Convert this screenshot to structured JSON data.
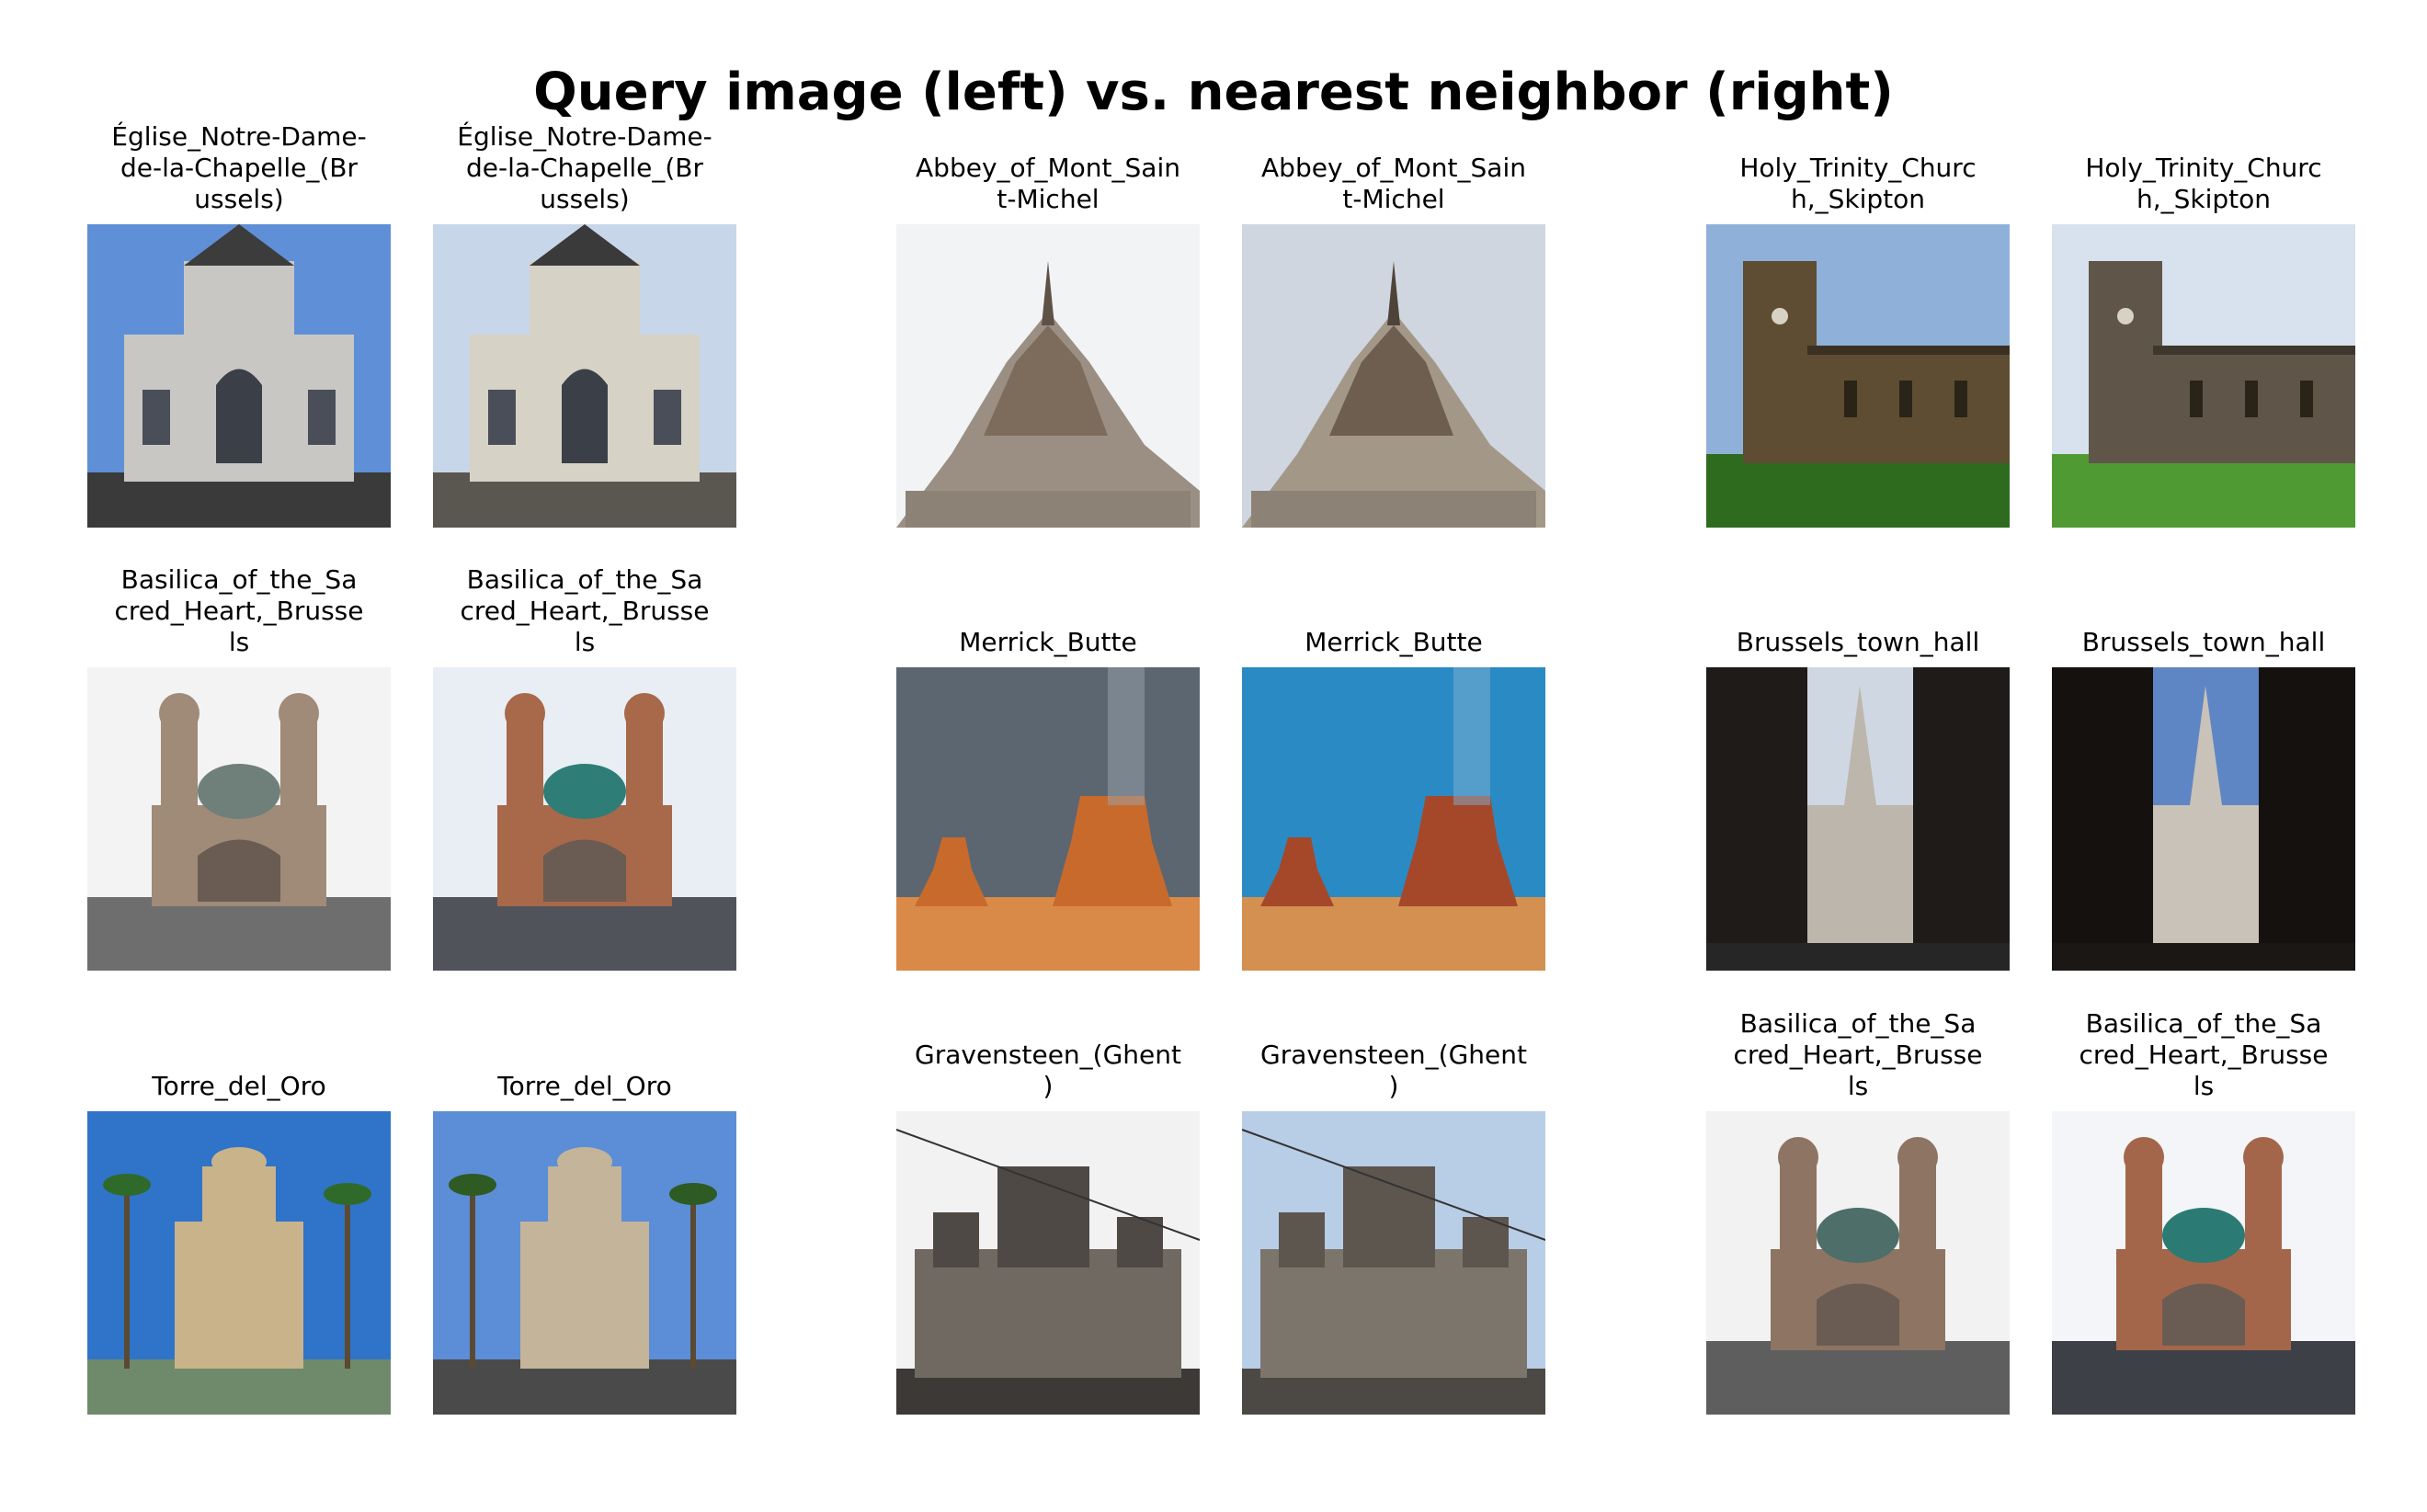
{
  "title": "Query image (left) vs. nearest neighbor (right)",
  "pairs": [
    {
      "query": {
        "label": "Église_Notre-Dame-\nde-la-Chapelle_(Br\nussels)",
        "icon": "gothic-church-photo",
        "sky": "#5f8fd6",
        "main": "#c9c7c4",
        "ground": "#3a3a3a",
        "roof": "#3c3c3c"
      },
      "neighbor": {
        "label": "Église_Notre-Dame-\nde-la-Chapelle_(Br\nussels)",
        "icon": "gothic-church-photo",
        "sky": "#c8d6ea",
        "main": "#d6d2c6",
        "ground": "#5a5750",
        "roof": "#3a3a3a"
      }
    },
    {
      "query": {
        "label": "Abbey_of_Mont_Sain\nt-Michel",
        "icon": "mont-saint-michel-photo",
        "sky": "#f1f3f5",
        "main": "#7d6c5b",
        "ground": "#9a8f82",
        "roof": "#5e5246"
      },
      "neighbor": {
        "label": "Abbey_of_Mont_Sain\nt-Michel",
        "icon": "mont-saint-michel-photo",
        "sky": "#cfd6e0",
        "main": "#6e5e50",
        "ground": "#a39887",
        "roof": "#4e4338"
      }
    },
    {
      "query": {
        "label": "Holy_Trinity_Churc\nh,_Skipton",
        "icon": "stone-church-photo",
        "sky": "#8fb1d9",
        "main": "#5e4d32",
        "ground": "#2f6b1f",
        "roof": "#3b3122"
      },
      "neighbor": {
        "label": "Holy_Trinity_Churc\nh,_Skipton",
        "icon": "stone-church-photo",
        "sky": "#d8e2ee",
        "main": "#5f5649",
        "ground": "#4f9a33",
        "roof": "#3e372d"
      }
    },
    {
      "query": {
        "label": "Basilica_of_the_Sa\ncred_Heart,_Brusse\nls",
        "icon": "basilica-photo",
        "sky": "#f3f3f3",
        "main": "#a08a78",
        "ground": "#6e6e6e",
        "roof": "#6f7f7a"
      },
      "neighbor": {
        "label": "Basilica_of_the_Sa\ncred_Heart,_Brusse\nls",
        "icon": "basilica-photo",
        "sky": "#e9eef5",
        "main": "#a8684a",
        "ground": "#50535a",
        "roof": "#2f7d77"
      }
    },
    {
      "query": {
        "label": "Merrick_Butte",
        "icon": "desert-butte-photo",
        "sky": "#5c6670",
        "main": "#c86a2c",
        "ground": "#d98a48",
        "roof": "#9aa3ad"
      },
      "neighbor": {
        "label": "Merrick_Butte",
        "icon": "desert-butte-photo",
        "sky": "#2a8bc4",
        "main": "#a5482a",
        "ground": "#d49050",
        "roof": "#7fb0d0"
      }
    },
    {
      "query": {
        "label": "Brussels_town_hall",
        "icon": "town-hall-photo",
        "sky": "#cfd8e2",
        "main": "#bcb6ad",
        "ground": "#262626",
        "roof": "#1e1b19"
      },
      "neighbor": {
        "label": "Brussels_town_hall",
        "icon": "town-hall-photo",
        "sky": "#5f86c4",
        "main": "#c8c2b8",
        "ground": "#1a1715",
        "roof": "#14110f"
      }
    },
    {
      "query": {
        "label": "Torre_del_Oro",
        "icon": "tower-photo",
        "sky": "#2f74c9",
        "main": "#c9b38a",
        "ground": "#6f8a6a",
        "roof": "#2f6a2a"
      },
      "neighbor": {
        "label": "Torre_del_Oro",
        "icon": "tower-photo",
        "sky": "#5b8ed6",
        "main": "#c4b49a",
        "ground": "#4a4a4a",
        "roof": "#2e5a24"
      }
    },
    {
      "query": {
        "label": "Gravensteen_(Ghent\n)",
        "icon": "castle-photo",
        "sky": "#f2f2f2",
        "main": "#6f6962",
        "ground": "#3c3936",
        "roof": "#4e4944"
      },
      "neighbor": {
        "label": "Gravensteen_(Ghent\n)",
        "icon": "castle-photo",
        "sky": "#b8cde6",
        "main": "#7c756c",
        "ground": "#4c4844",
        "roof": "#5c564f"
      }
    },
    {
      "query": {
        "label": "Basilica_of_the_Sa\ncred_Heart,_Brusse\nls",
        "icon": "basilica-photo",
        "sky": "#f2f2f2",
        "main": "#8e7462",
        "ground": "#5e5e5e",
        "roof": "#4d6e69"
      },
      "neighbor": {
        "label": "Basilica_of_the_Sa\ncred_Heart,_Brusse\nls",
        "icon": "basilica-photo",
        "sky": "#f3f5f8",
        "main": "#a4664a",
        "ground": "#3e4048",
        "roof": "#2c7a74"
      }
    }
  ]
}
